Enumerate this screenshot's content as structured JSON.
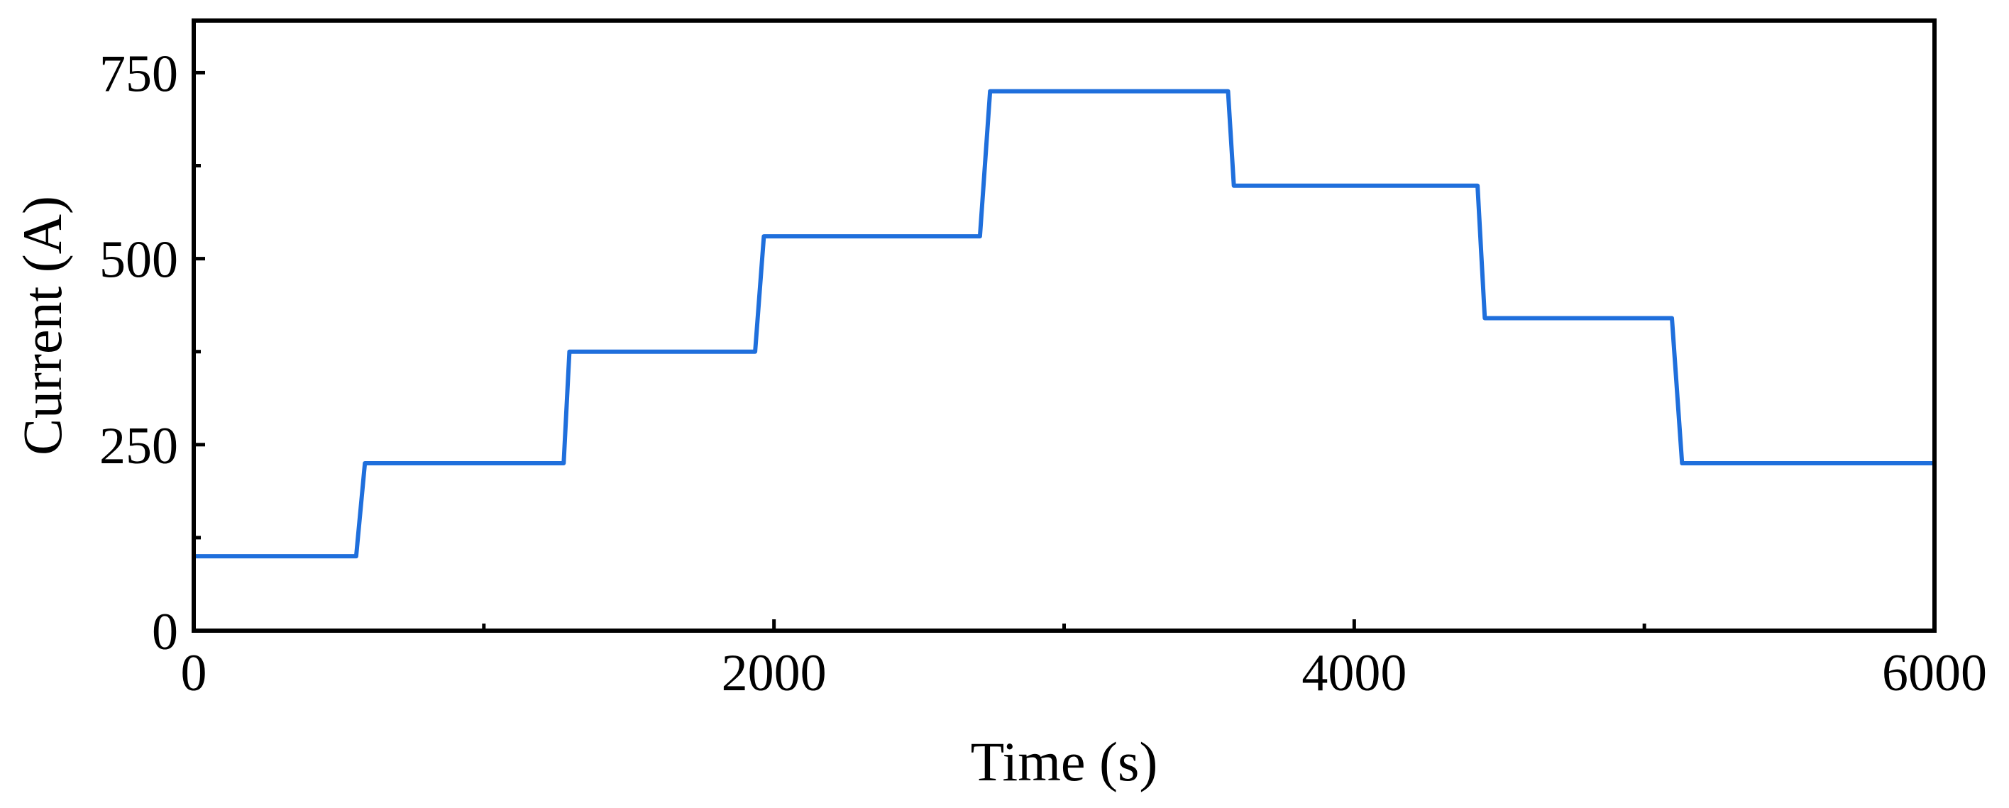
{
  "chart_data": {
    "type": "line",
    "title": "",
    "xlabel": "Time (s)",
    "ylabel": "Current (A)",
    "xlim": [
      0,
      6000
    ],
    "ylim": [
      0,
      820
    ],
    "x_ticks": [
      0,
      2000,
      4000,
      6000
    ],
    "x_tick_labels": [
      "0",
      "2000",
      "4000",
      "6000"
    ],
    "x_minor_ticks": [
      1000,
      3000,
      5000
    ],
    "y_ticks": [
      0,
      250,
      500,
      750
    ],
    "y_tick_labels": [
      "0",
      "250",
      "500",
      "750"
    ],
    "y_minor_ticks": [
      125,
      375,
      625
    ],
    "grid": false,
    "legend": "none",
    "series": [
      {
        "color": "#1f6fdc",
        "x": [
          0,
          560,
          590,
          1275,
          1295,
          1935,
          1965,
          2710,
          2745,
          3565,
          3585,
          4425,
          4450,
          5095,
          5130,
          6000
        ],
        "y": [
          100,
          100,
          225,
          225,
          375,
          375,
          530,
          530,
          725,
          725,
          598,
          598,
          420,
          420,
          225,
          225
        ]
      }
    ]
  }
}
